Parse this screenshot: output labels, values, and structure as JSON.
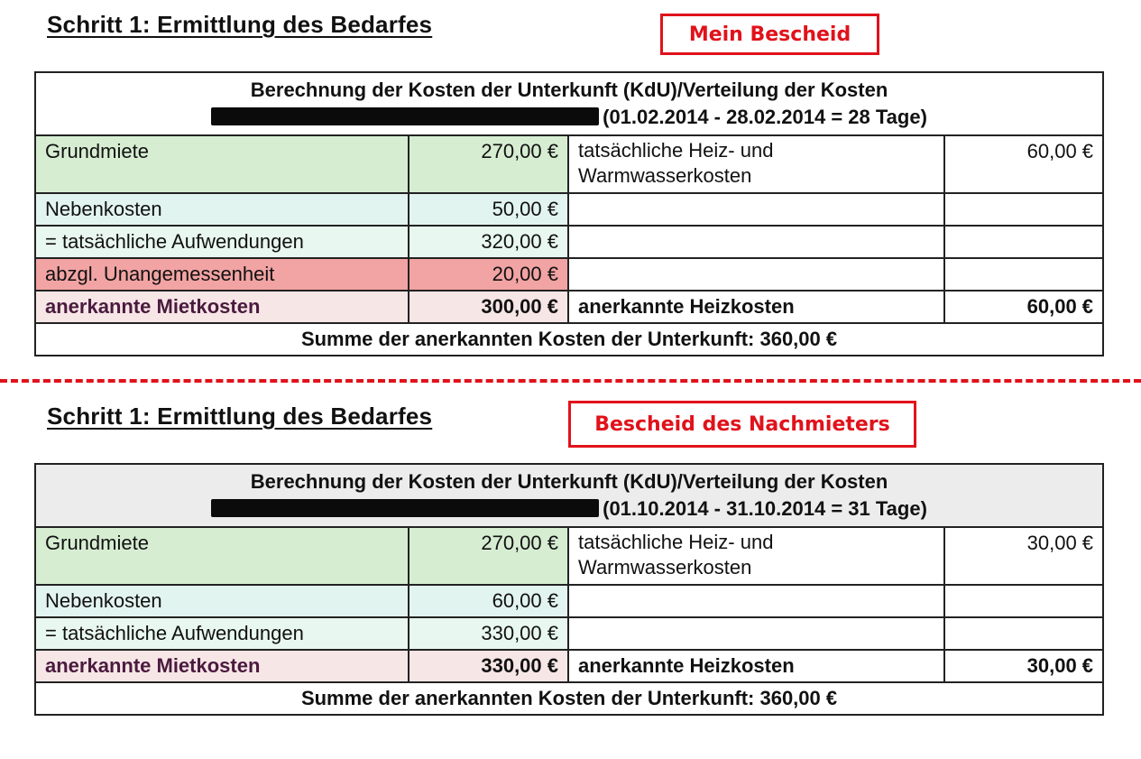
{
  "sections": [
    {
      "heading": "Schritt 1: Ermittlung des Bedarfes",
      "stamp": "Mein Bescheid",
      "table": {
        "title": "Berechnung der Kosten der Unterkunft (KdU)/Verteilung der Kosten",
        "period": "(01.02.2014 - 28.02.2014 = 28 Tage)",
        "rows": [
          {
            "label": "Grundmiete",
            "value": "270,00 €",
            "right_label": "tatsächliche Heiz- und Warmwasserkosten",
            "right_value": "60,00 €"
          },
          {
            "label": "Nebenkosten",
            "value": "50,00 €"
          },
          {
            "label": "= tatsächliche Aufwendungen",
            "value": "320,00 €"
          },
          {
            "label": "abzgl. Unangemessenheit",
            "value": "20,00 €"
          },
          {
            "label": "anerkannte Mietkosten",
            "value": "300,00 €",
            "right_label": "anerkannte Heizkosten",
            "right_value": "60,00 €"
          }
        ],
        "sum": "Summe der anerkannten Kosten der Unterkunft: 360,00 €"
      }
    },
    {
      "heading": "Schritt 1: Ermittlung des Bedarfes",
      "stamp": "Bescheid des Nachmieters",
      "table": {
        "title": "Berechnung der Kosten der Unterkunft (KdU)/Verteilung der Kosten",
        "period": "(01.10.2014 - 31.10.2014 = 31 Tage)",
        "rows": [
          {
            "label": "Grundmiete",
            "value": "270,00 €",
            "right_label": "tatsächliche Heiz- und Warmwasserkosten",
            "right_value": "30,00 €"
          },
          {
            "label": "Nebenkosten",
            "value": "60,00 €"
          },
          {
            "label": "= tatsächliche Aufwendungen",
            "value": "330,00 €"
          },
          {
            "label": "anerkannte Mietkosten",
            "value": "330,00 €",
            "right_label": "anerkannte Heizkosten",
            "right_value": "30,00 €"
          }
        ],
        "sum": "Summe der anerkannten Kosten der Unterkunft: 360,00 €"
      }
    }
  ],
  "colors": {
    "stamp_red": "#e0121b",
    "grundmiete_green": "#d6edd2",
    "nebenkosten_mint": "#e2f4ef",
    "unangemessenheit_red": "#f2a3a3",
    "mietkosten_pink": "#f7e6e6"
  }
}
